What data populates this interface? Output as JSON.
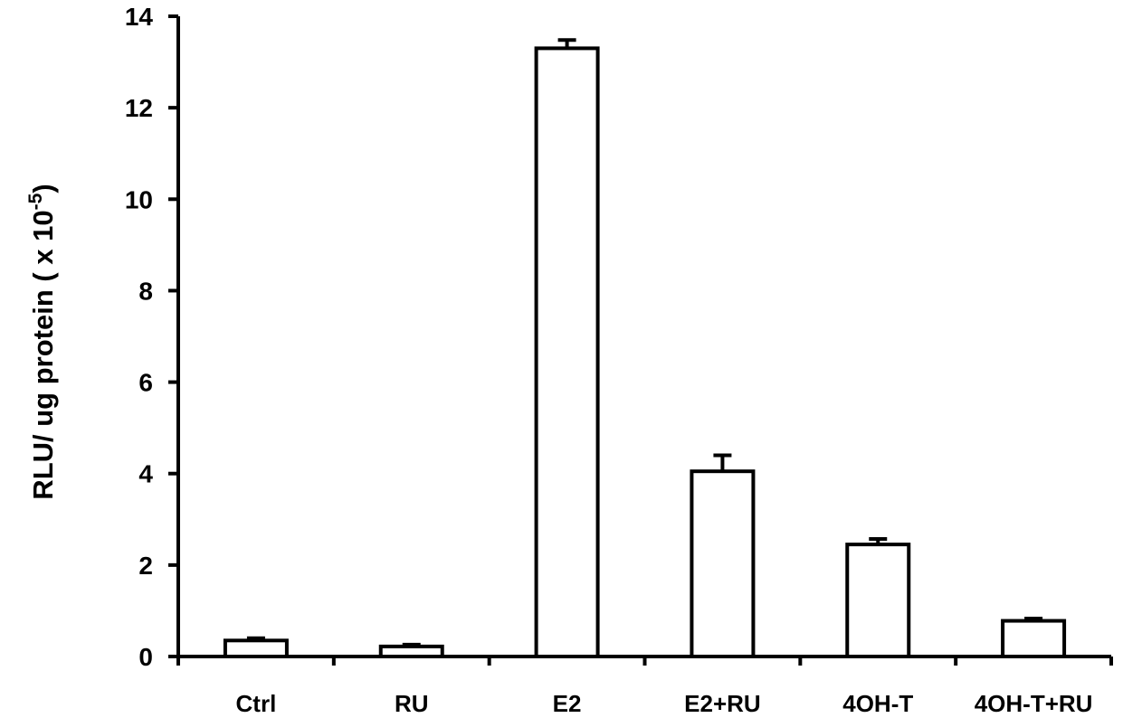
{
  "chart_data": {
    "type": "bar",
    "title": "",
    "xlabel": "",
    "ylabel": {
      "main": "RLU/ ug protein ( x 10",
      "exponent": "-5",
      "close": ")"
    },
    "categories": [
      "Ctrl",
      "RU",
      "E2",
      "E2+RU",
      "4OH-T",
      "4OH-T+RU"
    ],
    "values": [
      0.35,
      0.22,
      13.3,
      4.05,
      2.45,
      0.78
    ],
    "errors": [
      0.05,
      0.04,
      0.18,
      0.35,
      0.12,
      0.05
    ],
    "ylim": [
      0,
      14
    ],
    "yticks": [
      0,
      2,
      4,
      6,
      8,
      10,
      12,
      14
    ],
    "grid": false,
    "legend": "none",
    "bar_fill": "#ffffff",
    "bar_stroke": "#000000"
  }
}
